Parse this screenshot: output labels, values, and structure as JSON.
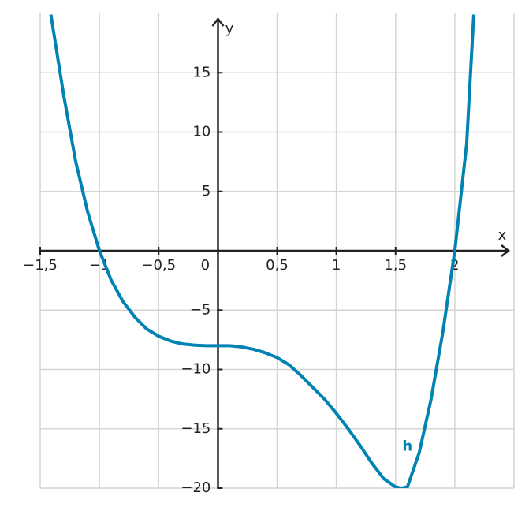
{
  "chart_data": {
    "type": "line",
    "x_label": "x",
    "y_label": "y",
    "x": [
      -1.41,
      -1.3,
      -1.2,
      -1.1,
      -1.0,
      -0.9,
      -0.8,
      -0.7,
      -0.6,
      -0.5,
      -0.4,
      -0.3,
      -0.2,
      -0.1,
      0,
      0.1,
      0.2,
      0.3,
      0.4,
      0.5,
      0.6,
      0.7,
      0.8,
      0.9,
      1.0,
      1.1,
      1.2,
      1.3,
      1.4,
      1.5,
      1.55,
      1.6,
      1.7,
      1.8,
      1.9,
      2.0,
      2.1,
      2.16
    ],
    "series": [
      {
        "name": "h",
        "color": "#0083b3",
        "values": [
          19.9,
          13,
          7.5,
          3.3,
          0,
          -2.5,
          -4.3,
          -5.6,
          -6.6,
          -7.2,
          -7.6,
          -7.85,
          -7.95,
          -8,
          -8,
          -8,
          -8.1,
          -8.3,
          -8.6,
          -9,
          -9.6,
          -10.5,
          -11.5,
          -12.5,
          -13.7,
          -15,
          -16.4,
          -17.9,
          -19.2,
          -19.9,
          -20,
          -19.9,
          -17,
          -12.5,
          -6.8,
          0,
          9,
          19.9
        ]
      }
    ],
    "series_label": {
      "text": "h",
      "x": 1.6,
      "y": -16.5
    },
    "xlim": [
      -1.5,
      2.5
    ],
    "ylim": [
      -20,
      20
    ],
    "xticks": [
      {
        "value": -1.5,
        "label": "−1,5"
      },
      {
        "value": -1,
        "label": "−1"
      },
      {
        "value": -0.5,
        "label": "−0,5"
      },
      0,
      {
        "value": 0.5,
        "label": "0,5"
      },
      1,
      {
        "value": 1.5,
        "label": "1,5"
      },
      2
    ],
    "yticks": [
      {
        "value": -20,
        "label": "−20"
      },
      {
        "value": -15,
        "label": "−15"
      },
      {
        "value": -10,
        "label": "−10"
      },
      {
        "value": -5,
        "label": "−5"
      },
      5,
      10,
      15
    ],
    "grid": true
  }
}
